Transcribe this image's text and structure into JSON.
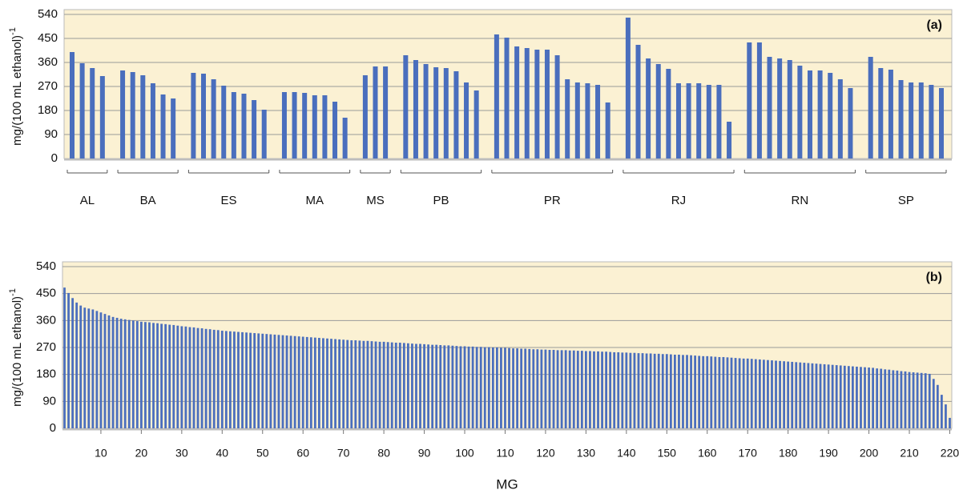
{
  "chart_data": [
    {
      "type": "grouped-bar",
      "annotation": "(a)",
      "ylabel": "mg/(100 mL ethanol)",
      "ylabel_sup": "-1",
      "ylim": [
        0,
        540
      ],
      "yticks": [
        0,
        90,
        180,
        270,
        360,
        450,
        540
      ],
      "grid": true,
      "color": "#4a6ebd",
      "plot_background": "#fbf1d3",
      "groups": [
        {
          "name": "AL",
          "values": [
            399,
            357,
            339,
            309
          ]
        },
        {
          "name": "BA",
          "values": [
            330,
            324,
            312,
            282,
            240,
            225
          ]
        },
        {
          "name": "ES",
          "values": [
            321,
            318,
            297,
            273,
            249,
            243,
            219,
            183
          ]
        },
        {
          "name": "MA",
          "values": [
            249,
            249,
            246,
            237,
            237,
            213,
            153
          ]
        },
        {
          "name": "MS",
          "values": [
            312,
            345,
            345
          ]
        },
        {
          "name": "PB",
          "values": [
            387,
            369,
            354,
            342,
            339,
            327,
            285,
            255
          ]
        },
        {
          "name": "PR",
          "values": [
            465,
            453,
            420,
            414,
            408,
            408,
            387,
            297,
            285,
            282,
            276,
            210
          ]
        },
        {
          "name": "RJ",
          "values": [
            528,
            426,
            375,
            354,
            336,
            282,
            282,
            282,
            276,
            276,
            138
          ]
        },
        {
          "name": "RN",
          "values": [
            435,
            435,
            381,
            375,
            369,
            348,
            330,
            330,
            321,
            297,
            264
          ]
        },
        {
          "name": "SP",
          "values": [
            381,
            339,
            333,
            294,
            285,
            285,
            276,
            264
          ]
        }
      ]
    },
    {
      "type": "bar",
      "annotation": "(b)",
      "ylabel": "mg/(100 mL ethanol)",
      "ylabel_sup": "-1",
      "xlabel": "MG",
      "ylim": [
        0,
        540
      ],
      "yticks": [
        0,
        90,
        180,
        270,
        360,
        450,
        540
      ],
      "xlim": [
        0.5,
        220.5
      ],
      "xticks": [
        10,
        20,
        30,
        40,
        50,
        60,
        70,
        80,
        90,
        100,
        110,
        120,
        130,
        140,
        150,
        160,
        170,
        180,
        190,
        200,
        210,
        220
      ],
      "grid": true,
      "color": "#4a6ebd",
      "plot_background": "#fbf1d3",
      "x": [
        1,
        2,
        3,
        4,
        5,
        6,
        7,
        8,
        9,
        10,
        11,
        12,
        13,
        14,
        15,
        16,
        17,
        18,
        19,
        20,
        21,
        22,
        23,
        24,
        25,
        26,
        27,
        28,
        29,
        30,
        31,
        32,
        33,
        34,
        35,
        36,
        37,
        38,
        39,
        40,
        41,
        42,
        43,
        44,
        45,
        46,
        47,
        48,
        49,
        50,
        51,
        52,
        53,
        54,
        55,
        56,
        57,
        58,
        59,
        60,
        61,
        62,
        63,
        64,
        65,
        66,
        67,
        68,
        69,
        70,
        71,
        72,
        73,
        74,
        75,
        76,
        77,
        78,
        79,
        80,
        81,
        82,
        83,
        84,
        85,
        86,
        87,
        88,
        89,
        90,
        91,
        92,
        93,
        94,
        95,
        96,
        97,
        98,
        99,
        100,
        101,
        102,
        103,
        104,
        105,
        106,
        107,
        108,
        109,
        110,
        111,
        112,
        113,
        114,
        115,
        116,
        117,
        118,
        119,
        120,
        121,
        122,
        123,
        124,
        125,
        126,
        127,
        128,
        129,
        130,
        131,
        132,
        133,
        134,
        135,
        136,
        137,
        138,
        139,
        140,
        141,
        142,
        143,
        144,
        145,
        146,
        147,
        148,
        149,
        150,
        151,
        152,
        153,
        154,
        155,
        156,
        157,
        158,
        159,
        160,
        161,
        162,
        163,
        164,
        165,
        166,
        167,
        168,
        169,
        170,
        171,
        172,
        173,
        174,
        175,
        176,
        177,
        178,
        179,
        180,
        181,
        182,
        183,
        184,
        185,
        186,
        187,
        188,
        189,
        190,
        191,
        192,
        193,
        194,
        195,
        196,
        197,
        198,
        199,
        200,
        201,
        202,
        203,
        204,
        205,
        206,
        207,
        208,
        209,
        210,
        211,
        212,
        213,
        214,
        215,
        216,
        217,
        218,
        219,
        220
      ],
      "values": [
        470,
        452,
        435,
        420,
        410,
        403,
        400,
        397,
        392,
        387,
        382,
        377,
        372,
        369,
        366,
        364,
        362,
        360,
        358,
        356,
        355,
        354,
        352,
        351,
        349,
        348,
        346,
        345,
        343,
        341,
        340,
        338,
        337,
        335,
        334,
        332,
        331,
        329,
        328,
        326,
        325,
        324,
        323,
        322,
        321,
        320,
        319,
        318,
        317,
        316,
        315,
        314,
        313,
        312,
        311,
        310,
        309,
        308,
        307,
        306,
        305,
        304,
        303,
        302,
        301,
        300,
        299,
        298,
        297,
        296,
        295,
        294,
        294,
        293,
        292,
        292,
        291,
        290,
        289,
        289,
        288,
        287,
        286,
        286,
        285,
        284,
        283,
        282,
        282,
        281,
        280,
        279,
        279,
        278,
        277,
        277,
        276,
        275,
        274,
        274,
        273,
        273,
        272,
        272,
        271,
        271,
        270,
        270,
        269,
        269,
        268,
        267,
        267,
        266,
        266,
        265,
        264,
        264,
        263,
        263,
        262,
        262,
        261,
        261,
        261,
        260,
        260,
        259,
        259,
        258,
        258,
        257,
        257,
        256,
        256,
        255,
        254,
        254,
        253,
        253,
        252,
        252,
        251,
        251,
        250,
        250,
        249,
        249,
        248,
        248,
        247,
        246,
        246,
        245,
        245,
        244,
        243,
        242,
        241,
        241,
        240,
        239,
        238,
        238,
        237,
        236,
        235,
        234,
        233,
        233,
        232,
        231,
        230,
        229,
        228,
        227,
        226,
        225,
        224,
        223,
        222,
        221,
        220,
        219,
        218,
        217,
        216,
        215,
        214,
        213,
        212,
        211,
        210,
        209,
        208,
        207,
        206,
        205,
        204,
        203,
        202,
        200,
        199,
        197,
        196,
        194,
        193,
        191,
        190,
        188,
        187,
        186,
        185,
        184,
        182,
        165,
        145,
        112,
        80,
        35
      ]
    }
  ]
}
